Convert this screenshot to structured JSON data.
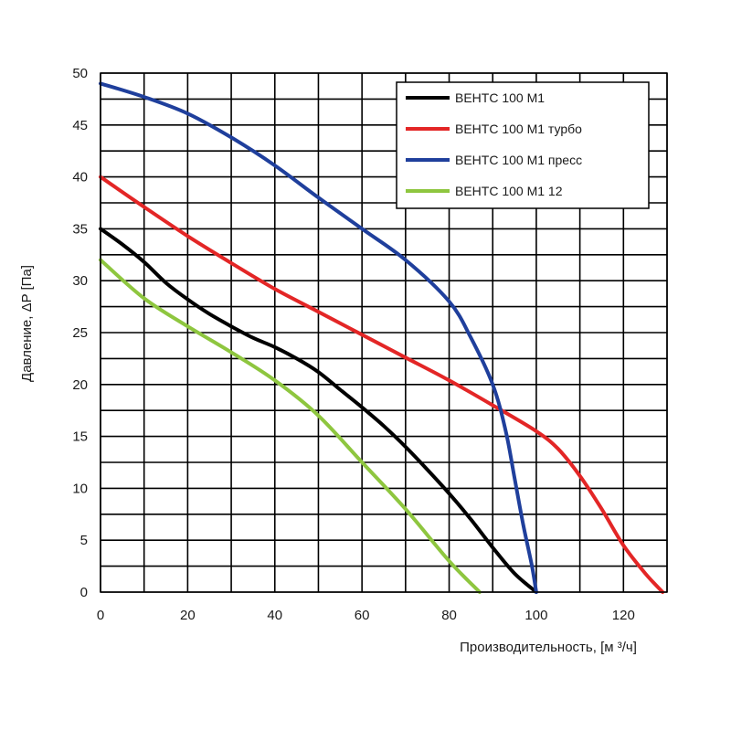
{
  "chart_data": {
    "type": "line",
    "title": "",
    "xlabel": "Производительность, [м ³/ч]",
    "ylabel": "Давление, ΔP [Па]",
    "xlim": [
      0,
      130
    ],
    "ylim": [
      0,
      50
    ],
    "x_ticks": [
      0,
      20,
      40,
      60,
      80,
      100,
      120
    ],
    "y_ticks": [
      0,
      5,
      10,
      15,
      20,
      25,
      30,
      35,
      40,
      45,
      50
    ],
    "x_minor_step": 10,
    "y_minor_step": 2.5,
    "grid": true,
    "legend_position": "top-right",
    "series": [
      {
        "name": "ВЕНТС 100 М1",
        "color": "#000000",
        "points": [
          [
            0,
            35
          ],
          [
            5,
            33.5
          ],
          [
            10,
            31.8
          ],
          [
            15,
            29.8
          ],
          [
            20,
            28.2
          ],
          [
            25,
            26.8
          ],
          [
            30,
            25.6
          ],
          [
            35,
            24.5
          ],
          [
            40,
            23.6
          ],
          [
            45,
            22.5
          ],
          [
            50,
            21.2
          ],
          [
            55,
            19.5
          ],
          [
            60,
            17.8
          ],
          [
            65,
            16
          ],
          [
            70,
            14
          ],
          [
            75,
            11.8
          ],
          [
            80,
            9.5
          ],
          [
            85,
            7
          ],
          [
            90,
            4.3
          ],
          [
            95,
            1.8
          ],
          [
            100,
            0
          ]
        ]
      },
      {
        "name": "ВЕНТС 100 М1 турбо",
        "color": "#e32626",
        "points": [
          [
            0,
            40
          ],
          [
            10,
            37.1
          ],
          [
            20,
            34.3
          ],
          [
            30,
            31.7
          ],
          [
            40,
            29.2
          ],
          [
            50,
            27
          ],
          [
            60,
            24.8
          ],
          [
            70,
            22.6
          ],
          [
            80,
            20.4
          ],
          [
            90,
            18
          ],
          [
            100,
            15.5
          ],
          [
            105,
            13.8
          ],
          [
            110,
            11.2
          ],
          [
            115,
            8
          ],
          [
            120,
            4.5
          ],
          [
            125,
            1.8
          ],
          [
            129,
            0
          ]
        ]
      },
      {
        "name": "ВЕНТС 100 М1 пресс",
        "color": "#1f3f9c",
        "points": [
          [
            0,
            49
          ],
          [
            10,
            47.7
          ],
          [
            20,
            46.1
          ],
          [
            30,
            43.8
          ],
          [
            40,
            41.1
          ],
          [
            50,
            38
          ],
          [
            60,
            35
          ],
          [
            70,
            32
          ],
          [
            80,
            28
          ],
          [
            85,
            24.5
          ],
          [
            90,
            20
          ],
          [
            93,
            15.5
          ],
          [
            95,
            11
          ],
          [
            97,
            6.5
          ],
          [
            99,
            2.5
          ],
          [
            100,
            0
          ]
        ]
      },
      {
        "name": "ВЕНТС 100 М1 12",
        "color": "#8ec63f",
        "points": [
          [
            0,
            32
          ],
          [
            10,
            28.3
          ],
          [
            20,
            25.6
          ],
          [
            30,
            23.1
          ],
          [
            40,
            20.4
          ],
          [
            50,
            17
          ],
          [
            60,
            12.5
          ],
          [
            70,
            8
          ],
          [
            80,
            3
          ],
          [
            87,
            0
          ]
        ]
      }
    ]
  }
}
